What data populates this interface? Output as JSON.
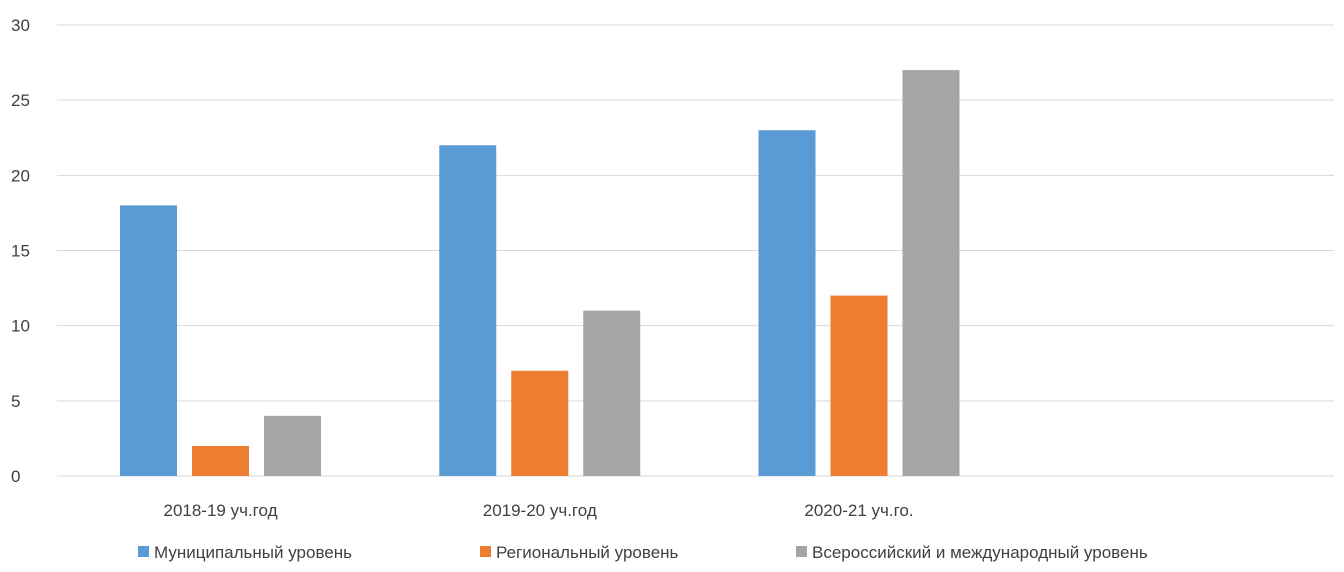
{
  "chart_data": {
    "type": "bar",
    "categories": [
      "2018-19 уч.год",
      "2019-20 уч.год",
      "2020-21 уч.го.",
      ""
    ],
    "series": [
      {
        "name": "Муниципальный уровень",
        "values": [
          18,
          22,
          23,
          null
        ],
        "color": "#5B9BD5"
      },
      {
        "name": "Региональный уровень",
        "values": [
          2,
          7,
          12,
          null
        ],
        "color": "#ED7D31"
      },
      {
        "name": "Всероссийский и международный уровень",
        "values": [
          4,
          11,
          27,
          null
        ],
        "color": "#A5A5A5"
      }
    ],
    "yticks": [
      "0",
      "5",
      "10",
      "15",
      "20",
      "25",
      "30"
    ],
    "ylim": [
      0,
      30
    ],
    "grid": true,
    "legend": "bottom",
    "title": "",
    "xlabel": "",
    "ylabel": ""
  }
}
